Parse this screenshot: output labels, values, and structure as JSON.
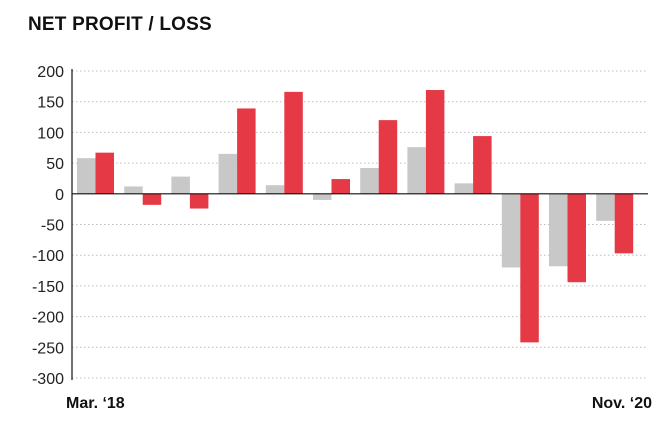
{
  "chart_data": {
    "type": "bar",
    "title": "NET PROFIT / LOSS",
    "x_start_label": "Mar. ‘18",
    "x_end_label": "Nov. ‘20",
    "ylim": [
      -300,
      200
    ],
    "yticks": [
      200,
      150,
      100,
      50,
      0,
      -50,
      -100,
      -150,
      -200,
      -250,
      -300
    ],
    "grid": true,
    "series_colors": [
      "#c8c8c8",
      "#e63946"
    ],
    "series": [
      {
        "values": [
          58,
          12,
          28,
          65,
          14,
          -10,
          42,
          76,
          17,
          -120,
          -118,
          -44
        ]
      },
      {
        "values": [
          67,
          -18,
          -24,
          139,
          166,
          24,
          120,
          169,
          94,
          -242,
          -144,
          -97
        ]
      }
    ]
  }
}
